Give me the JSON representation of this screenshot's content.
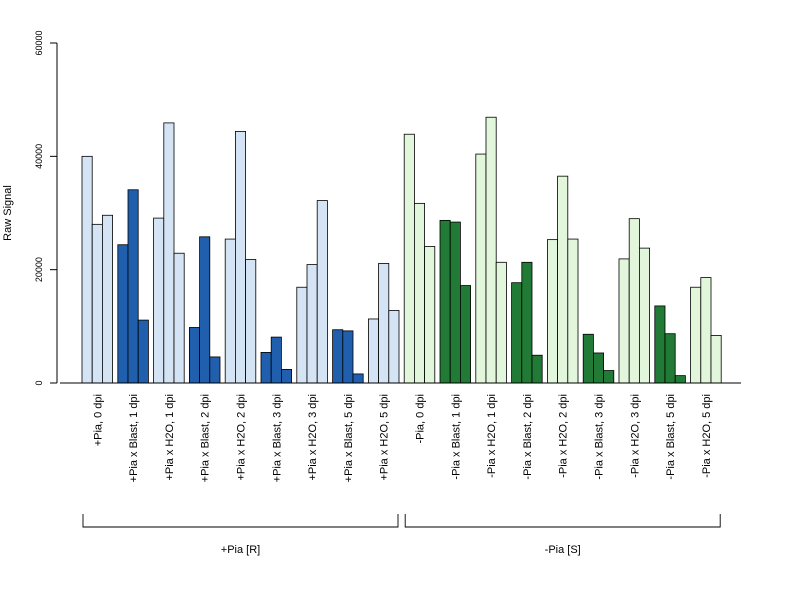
{
  "chart_data": {
    "type": "bar",
    "title": "",
    "xlabel": "",
    "ylabel": "Raw Signal",
    "ylim": [
      0,
      60000
    ],
    "yticks": [
      0,
      20000,
      40000,
      60000
    ],
    "grid": false,
    "legend": "none",
    "colors": {
      "blue_light": "#d4e4f5",
      "blue_dark": "#1f5fad",
      "green_light": "#e2f6dc",
      "green_dark": "#217a35",
      "edge": "#000000"
    },
    "categories": [
      "+Pia, 0 dpi",
      "+Pia x Blast, 1 dpi",
      "+Pia x H2O, 1 dpi",
      "+Pia x Blast, 2 dpi",
      "+Pia x H2O, 2 dpi",
      "+Pia x Blast, 3 dpi",
      "+Pia x H2O, 3 dpi",
      "+Pia x Blast, 5 dpi",
      "+Pia x H2O, 5 dpi",
      "-Pia, 0 dpi",
      "-Pia x Blast, 1 dpi",
      "-Pia x H2O, 1 dpi",
      "-Pia x Blast, 2 dpi",
      "-Pia x H2O, 2 dpi",
      "-Pia x Blast, 3 dpi",
      "-Pia x H2O, 3 dpi",
      "-Pia x Blast, 5 dpi",
      "-Pia x H2O, 5 dpi"
    ],
    "category_colors": [
      "blue_light",
      "blue_dark",
      "blue_light",
      "blue_dark",
      "blue_light",
      "blue_dark",
      "blue_light",
      "blue_dark",
      "blue_light",
      "green_light",
      "green_dark",
      "green_light",
      "green_dark",
      "green_light",
      "green_dark",
      "green_light",
      "green_dark",
      "green_light"
    ],
    "replicates": [
      [
        40000,
        28000,
        29600
      ],
      [
        24400,
        34100,
        11100
      ],
      [
        29100,
        45900,
        22900
      ],
      [
        9800,
        25800,
        4600
      ],
      [
        25400,
        44400,
        21800
      ],
      [
        5400,
        8100,
        2400
      ],
      [
        16900,
        20900,
        32200
      ],
      [
        9400,
        9200,
        1600
      ],
      [
        11300,
        21100,
        12800
      ],
      [
        43900,
        31700,
        24100
      ],
      [
        28700,
        28400,
        17200
      ],
      [
        40400,
        46900,
        21300
      ],
      [
        17700,
        21300,
        4900
      ],
      [
        25300,
        36500,
        25400
      ],
      [
        8600,
        5300,
        2200
      ],
      [
        21900,
        29000,
        23800
      ],
      [
        13600,
        8700,
        1300
      ],
      [
        16900,
        18600,
        8400
      ]
    ],
    "groups": [
      {
        "label": "+Pia [R]",
        "start": 0,
        "end": 8
      },
      {
        "label": "-Pia [S]",
        "start": 9,
        "end": 17
      }
    ]
  }
}
